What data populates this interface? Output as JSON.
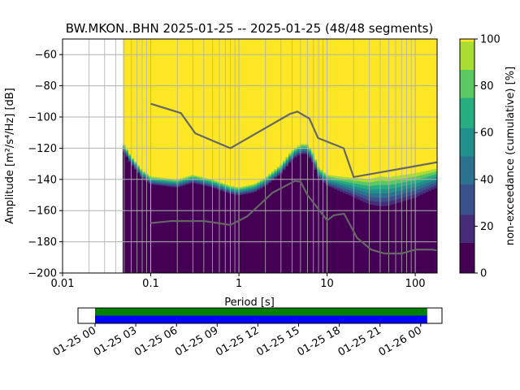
{
  "chart_data": {
    "type": "heatmap",
    "title": "BW.MKON..BHN   2025-01-25 -- 2025-01-25  (48/48 segments)",
    "xlabel": "Period [s]",
    "ylabel": "Amplitude [m²/s⁴/Hz] [dB]",
    "xscale": "log",
    "xlim": [
      0.01,
      177
    ],
    "ylim": [
      -200,
      -50
    ],
    "xticks": [
      {
        "v": 0.01,
        "label": "0.01"
      },
      {
        "v": 0.1,
        "label": "0.1"
      },
      {
        "v": 1,
        "label": "1"
      },
      {
        "v": 10,
        "label": "10"
      },
      {
        "v": 100,
        "label": "100"
      }
    ],
    "yticks": [
      -200,
      -180,
      -160,
      -140,
      -120,
      -100,
      -80,
      -60
    ],
    "grid": true,
    "data_period_range": [
      0.048,
      177
    ],
    "median_level_curve": [
      [
        0.048,
        -119
      ],
      [
        0.06,
        -128
      ],
      [
        0.08,
        -137
      ],
      [
        0.1,
        -141
      ],
      [
        0.2,
        -143
      ],
      [
        0.3,
        -140
      ],
      [
        0.5,
        -143
      ],
      [
        0.8,
        -147
      ],
      [
        1,
        -148
      ],
      [
        1.5,
        -146
      ],
      [
        2,
        -142
      ],
      [
        3,
        -134
      ],
      [
        4,
        -125
      ],
      [
        5,
        -121
      ],
      [
        6,
        -121
      ],
      [
        7,
        -127
      ],
      [
        8,
        -136
      ],
      [
        10,
        -141
      ],
      [
        15,
        -144
      ],
      [
        20,
        -146
      ],
      [
        30,
        -149
      ],
      [
        50,
        -149
      ],
      [
        100,
        -145
      ],
      [
        177,
        -140
      ]
    ],
    "transition_width_db": [
      [
        0.048,
        6
      ],
      [
        1,
        6
      ],
      [
        10,
        8
      ],
      [
        20,
        14
      ],
      [
        40,
        22
      ],
      [
        100,
        18
      ],
      [
        177,
        14
      ]
    ],
    "noise_models": [
      {
        "name": "NHNM",
        "points": [
          [
            0.1,
            -91.5
          ],
          [
            0.22,
            -97.5
          ],
          [
            0.32,
            -110.5
          ],
          [
            0.8,
            -120
          ],
          [
            3.8,
            -98
          ],
          [
            4.6,
            -96.5
          ],
          [
            6.3,
            -101
          ],
          [
            7.9,
            -113.5
          ],
          [
            15.4,
            -120
          ],
          [
            20,
            -138.5
          ],
          [
            177,
            -129
          ]
        ]
      },
      {
        "name": "NLNM",
        "points": [
          [
            0.1,
            -168
          ],
          [
            0.17,
            -166.7
          ],
          [
            0.4,
            -166.7
          ],
          [
            0.8,
            -169.2
          ],
          [
            1.24,
            -163.7
          ],
          [
            2.4,
            -148.6
          ],
          [
            4.3,
            -141
          ],
          [
            5,
            -141.5
          ],
          [
            6,
            -150
          ],
          [
            10,
            -166.2
          ],
          [
            12,
            -163
          ],
          [
            15.6,
            -162
          ],
          [
            21.9,
            -177.5
          ],
          [
            31.6,
            -185
          ],
          [
            45,
            -187.5
          ],
          [
            70,
            -187.5
          ],
          [
            101,
            -185
          ],
          [
            154,
            -185
          ],
          [
            177,
            -185.5
          ]
        ]
      }
    ],
    "colorbar": {
      "label": "non-exceedance (cumulative) [%]",
      "range": [
        0,
        100
      ],
      "ticks": [
        0,
        20,
        40,
        60,
        80,
        100
      ]
    },
    "timeline": {
      "ticks": [
        "01-25 00",
        "01-25 03",
        "01-25 06",
        "01-25 09",
        "01-25 12",
        "01-25 15",
        "01-25 18",
        "01-25 21",
        "01-26 00"
      ],
      "coverage_start_fraction": 0.0,
      "coverage_end_fraction": 1.02,
      "colors": {
        "top": "#008000",
        "bottom": "#0000ff"
      }
    },
    "colors": {
      "model_line": "#666666",
      "grid": "#b0b0b0"
    }
  }
}
